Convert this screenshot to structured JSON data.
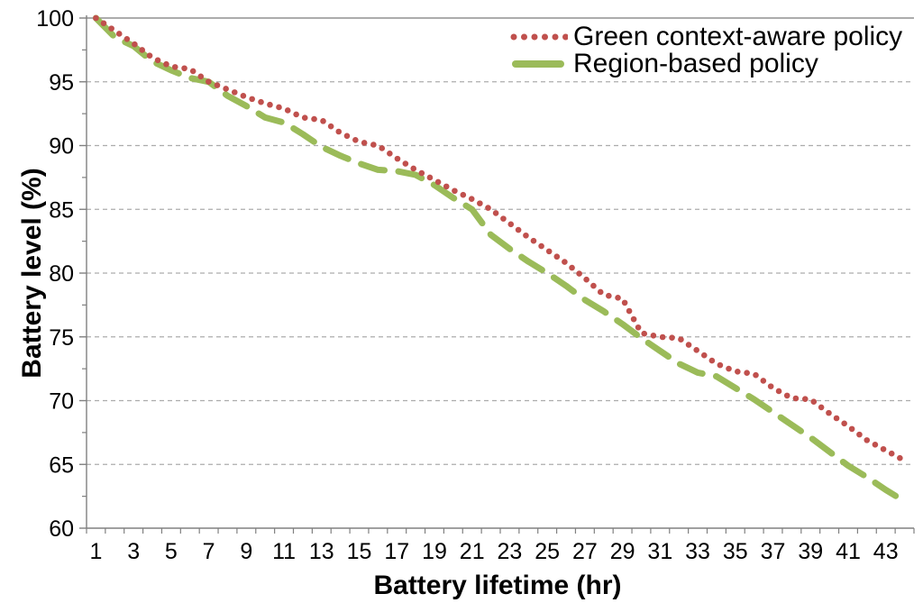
{
  "chart_data": {
    "type": "line",
    "title": "",
    "xlabel": "Battery lifetime (hr)",
    "ylabel": "Battery level (%)",
    "x": [
      1,
      2,
      3,
      4,
      5,
      6,
      7,
      8,
      9,
      10,
      11,
      12,
      13,
      14,
      15,
      16,
      17,
      18,
      19,
      20,
      21,
      22,
      23,
      24,
      25,
      26,
      27,
      28,
      29,
      30,
      31,
      32,
      33,
      34,
      35,
      36,
      37,
      38,
      39,
      40,
      41,
      42,
      43,
      44
    ],
    "series": [
      {
        "name": "Green context-aware policy",
        "color": "#C0504D",
        "line_style": "dotted",
        "values": [
          100,
          99,
          98,
          96.9,
          96.2,
          96,
          95,
          94.4,
          93.8,
          93.3,
          92.9,
          92.2,
          92,
          91,
          90.3,
          90,
          89,
          88.1,
          87.3,
          86.5,
          85.8,
          85,
          83.9,
          82.8,
          81.8,
          80.8,
          79.6,
          78.3,
          78,
          75.3,
          75,
          74.9,
          73.9,
          72.9,
          72.3,
          72.1,
          71,
          70.2,
          70.1,
          69,
          68,
          66.9,
          66.1,
          65.3
        ]
      },
      {
        "name": "Region-based policy",
        "color": "#9BBB59",
        "line_style": "dashed",
        "values": [
          100,
          98.5,
          97.8,
          96.6,
          95.9,
          95.3,
          95,
          93.9,
          93.1,
          92.2,
          91.8,
          90.9,
          89.9,
          89.2,
          88.6,
          88.1,
          88,
          87.7,
          86.9,
          85.9,
          85,
          83,
          81.9,
          80.9,
          80,
          79,
          77.9,
          77,
          76,
          74.9,
          73.9,
          72.9,
          72.2,
          71.9,
          71,
          70.1,
          69.1,
          68.1,
          67.1,
          66,
          64.9,
          64,
          63,
          62.1
        ]
      }
    ],
    "xlim": [
      1,
      44
    ],
    "ylim": [
      60,
      100
    ],
    "x_tick_labels": [
      1,
      3,
      5,
      7,
      9,
      11,
      13,
      15,
      17,
      19,
      21,
      23,
      25,
      27,
      29,
      31,
      33,
      35,
      37,
      39,
      41,
      43
    ],
    "y_tick_labels": [
      100,
      95,
      90,
      85,
      80,
      75,
      70,
      65,
      60
    ],
    "y_minor_tick_step": 2.5,
    "x_minor_tick_step": 1,
    "grid": "horizontal dashed gridlines every 5, solid line at 100",
    "legend_position": "top-right inside plot area"
  },
  "colors": {
    "background": "#FFFFFF",
    "axis_line": "#808080",
    "gridline": "#ACACAC",
    "top_border": "#909090",
    "text": "#000000",
    "series_dotted_red": "#C0504D",
    "series_dashed_green": "#9BBB59"
  }
}
